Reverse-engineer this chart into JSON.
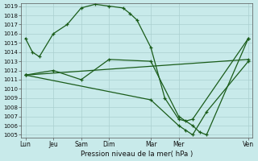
{
  "title": "Pression niveau de la mer( hPa )",
  "bg_color": "#c8eaea",
  "grid_color": "#aacfcf",
  "line_color": "#1a5c1a",
  "ylim": [
    1005,
    1019
  ],
  "yticks": [
    1005,
    1006,
    1007,
    1008,
    1009,
    1010,
    1011,
    1012,
    1013,
    1014,
    1015,
    1016,
    1017,
    1018,
    1019
  ],
  "xtick_labels": [
    "Lun",
    "Jeu",
    "Sam",
    "Dim",
    "Mar",
    "Mer",
    "Ven"
  ],
  "xtick_pos": [
    0,
    2,
    4,
    6,
    9,
    11,
    16
  ],
  "lines": [
    {
      "x": [
        0,
        0.5,
        1,
        2,
        3,
        4,
        5,
        6,
        7,
        7.5,
        8,
        9,
        10,
        11,
        11.5,
        12,
        16
      ],
      "y": [
        1015.5,
        1014.0,
        1013.5,
        1016.0,
        1017.0,
        1018.8,
        1019.2,
        1019.0,
        1018.8,
        1018.2,
        1017.5,
        1014.5,
        1009.0,
        1006.7,
        1006.5,
        1006.7,
        1015.5
      ]
    },
    {
      "x": [
        0,
        2,
        4,
        6,
        9,
        11,
        12,
        12.5,
        13,
        16
      ],
      "y": [
        1011.5,
        1012.0,
        1011.0,
        1013.2,
        1013.0,
        1007.0,
        1006.0,
        1005.3,
        1005.0,
        1015.5
      ]
    },
    {
      "x": [
        0,
        16
      ],
      "y": [
        1011.5,
        1013.2
      ]
    },
    {
      "x": [
        0,
        9,
        11,
        11.5,
        12,
        13,
        16
      ],
      "y": [
        1011.5,
        1008.8,
        1006.0,
        1005.5,
        1005.0,
        1007.5,
        1013.0
      ]
    }
  ]
}
